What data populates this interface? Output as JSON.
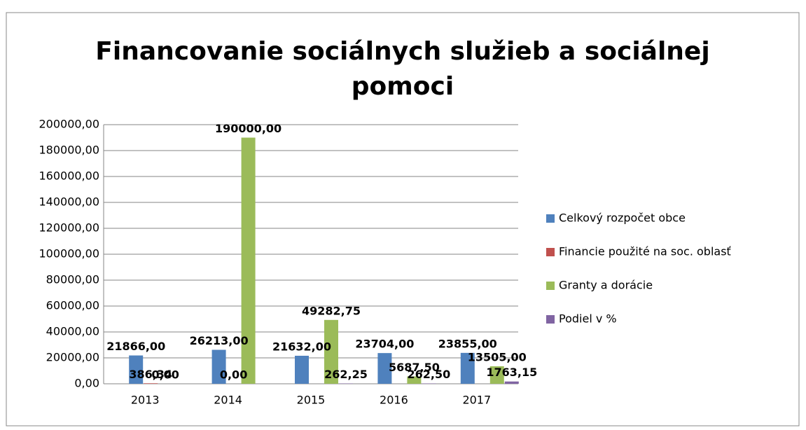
{
  "chart_data": {
    "type": "bar",
    "title": [
      "Financovanie sociálnych služieb a sociálnej",
      "pomoci"
    ],
    "categories": [
      "2013",
      "2014",
      "2015",
      "2016",
      "2017"
    ],
    "series": [
      {
        "name": "Celkový rozpočet obce",
        "color": "#4f81bd",
        "values": [
          21866,
          26213,
          21632,
          23704,
          23855
        ],
        "value_labels": [
          "21866,00",
          "26213,00",
          "21632,00",
          "23704,00",
          "23855,00"
        ]
      },
      {
        "name": "Financie použité na soc. oblasť",
        "color": "#c0504d",
        "values": [
          386.34,
          0,
          null,
          null,
          null
        ],
        "value_labels": [
          "386,34",
          "0,00",
          null,
          null,
          null
        ]
      },
      {
        "name": "Granty a dorácie",
        "color": "#9bbb59",
        "values": [
          0,
          190000,
          49282.75,
          5687.5,
          13505
        ],
        "value_labels": [
          "0,00",
          "190000,00",
          "49282,75",
          "5687,50",
          "13505,00"
        ]
      },
      {
        "name": "Podiel v %",
        "color": "#8064a2",
        "values": [
          null,
          null,
          262.25,
          262.5,
          1763.15
        ],
        "value_labels": [
          null,
          null,
          "262,25",
          "262,50",
          "1763,15"
        ]
      }
    ],
    "ylim": [
      0,
      200000
    ],
    "yticks": [
      {
        "value": 0,
        "label": "0,00"
      },
      {
        "value": 20000,
        "label": "20000,00"
      },
      {
        "value": 40000,
        "label": "40000,00"
      },
      {
        "value": 60000,
        "label": "60000,00"
      },
      {
        "value": 80000,
        "label": "80000,00"
      },
      {
        "value": 100000,
        "label": "100000,00"
      },
      {
        "value": 120000,
        "label": "120000,00"
      },
      {
        "value": 140000,
        "label": "140000,00"
      },
      {
        "value": 160000,
        "label": "160000,00"
      },
      {
        "value": 180000,
        "label": "180000,00"
      },
      {
        "value": 200000,
        "label": "200000,00"
      }
    ],
    "grid": true,
    "legend": "right"
  }
}
